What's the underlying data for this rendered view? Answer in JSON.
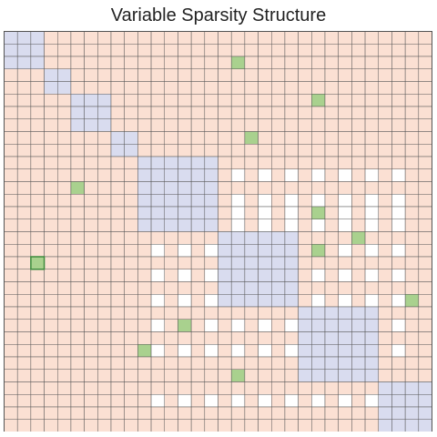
{
  "title": "Variable Sparsity Structure",
  "matrix": {
    "size": 32,
    "blocks": [
      {
        "start": 0,
        "size": 3
      },
      {
        "start": 3,
        "size": 2
      },
      {
        "start": 5,
        "size": 3
      },
      {
        "start": 8,
        "size": 2
      },
      {
        "start": 10,
        "size": 6
      },
      {
        "start": 16,
        "size": 6
      },
      {
        "start": 22,
        "size": 6
      },
      {
        "start": 28,
        "size": 4
      }
    ],
    "dense_rows": [
      0,
      1,
      2,
      3,
      4,
      5,
      6,
      7,
      8,
      9,
      10,
      12,
      16,
      18,
      20,
      22,
      24,
      26,
      27,
      28,
      30,
      31
    ],
    "dense_cols": [
      0,
      1,
      2,
      3,
      4,
      5,
      6,
      7,
      8,
      9,
      10,
      12,
      14,
      16,
      18,
      20,
      22,
      24,
      26,
      28,
      30,
      31
    ],
    "extra_nonzeros": [
      [
        2,
        17
      ],
      [
        5,
        23
      ],
      [
        8,
        18
      ],
      [
        12,
        5
      ],
      [
        14,
        23
      ],
      [
        16,
        26
      ],
      [
        17,
        23
      ],
      [
        18,
        2
      ],
      [
        21,
        30
      ],
      [
        23,
        13
      ],
      [
        25,
        10
      ],
      [
        27,
        17
      ]
    ],
    "highlighted_cell": [
      18,
      2
    ],
    "colors": {
      "empty": "#ffffff",
      "dense": "#fbe0d3",
      "block": "#d9dcef",
      "nonzero": "#a9d18e",
      "grid": "#555555",
      "highlight_border": "#3d8b3d"
    }
  }
}
